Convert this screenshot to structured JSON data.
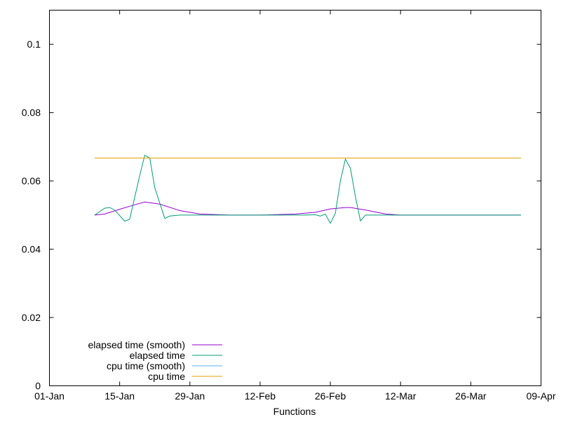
{
  "chart_data": {
    "type": "line",
    "title": "",
    "xlabel": "Functions",
    "ylabel": "",
    "xlim": [
      "01-01",
      "04-09"
    ],
    "ylim": [
      0,
      0.11
    ],
    "x_ticks": [
      "01-Jan",
      "15-Jan",
      "29-Jan",
      "12-Feb",
      "26-Feb",
      "12-Mar",
      "26-Mar",
      "09-Apr"
    ],
    "y_ticks": [
      "0",
      "0.02",
      "0.04",
      "0.06",
      "0.08",
      "0.1"
    ],
    "y_tick_values": [
      0,
      0.02,
      0.04,
      0.06,
      0.08,
      0.1
    ],
    "grid": false,
    "legend_position": "bottom-left",
    "series": [
      {
        "name": "elapsed time (smooth)",
        "color": "#9400d3",
        "x": [
          "01-10",
          "01-12",
          "01-15",
          "01-18",
          "01-20",
          "01-23",
          "01-27",
          "01-31",
          "02-06",
          "02-12",
          "02-19",
          "02-23",
          "02-26",
          "03-01",
          "03-02",
          "03-05",
          "03-09",
          "03-12",
          "04-05"
        ],
        "y": [
          0.05,
          0.0503,
          0.0517,
          0.053,
          0.0538,
          0.0532,
          0.0513,
          0.0503,
          0.05,
          0.05,
          0.0503,
          0.0508,
          0.0518,
          0.0522,
          0.0522,
          0.0515,
          0.0503,
          0.05,
          0.05
        ]
      },
      {
        "name": "elapsed time",
        "color": "#009e73",
        "x": [
          "01-10",
          "01-12",
          "01-13",
          "01-14",
          "01-16",
          "01-17",
          "01-19",
          "01-20",
          "01-21",
          "01-22",
          "01-24",
          "01-25",
          "01-27",
          "02-21",
          "02-23",
          "02-24",
          "02-25",
          "02-26",
          "02-27",
          "02-28",
          "03-01",
          "03-02",
          "03-03",
          "03-04",
          "03-05",
          "04-05"
        ],
        "y": [
          0.05,
          0.052,
          0.0522,
          0.0515,
          0.0482,
          0.0488,
          0.0616,
          0.0675,
          0.0667,
          0.058,
          0.049,
          0.0497,
          0.05,
          0.05,
          0.0501,
          0.0497,
          0.0503,
          0.0476,
          0.0505,
          0.06,
          0.0664,
          0.0637,
          0.0554,
          0.0483,
          0.05,
          0.05
        ]
      },
      {
        "name": "cpu time (smooth)",
        "color": "#56b4e9",
        "x": [
          "01-10",
          "04-05"
        ],
        "y": [
          0.0667,
          0.0667
        ]
      },
      {
        "name": "cpu time",
        "color": "#e69f00",
        "x": [
          "01-10",
          "04-05"
        ],
        "y": [
          0.0667,
          0.0667
        ]
      }
    ]
  }
}
